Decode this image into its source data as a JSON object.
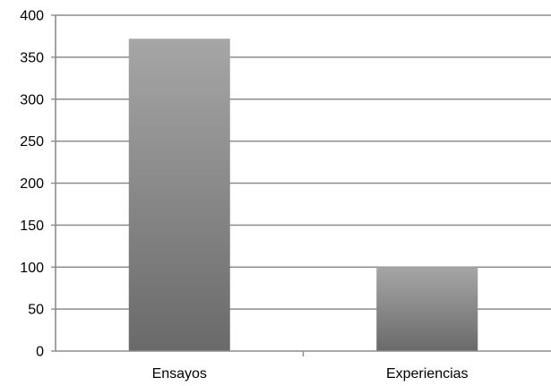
{
  "chart_data": {
    "type": "bar",
    "title": "",
    "xlabel": "",
    "ylabel": "",
    "categories": [
      "Ensayos",
      "Experiencias"
    ],
    "values": [
      372,
      100
    ],
    "ylim": [
      0,
      400
    ],
    "yticks": [
      0,
      50,
      100,
      150,
      200,
      250,
      300,
      350,
      400
    ],
    "grid": true,
    "legend": "none",
    "colors": {
      "bar_top": "#a6a6a6",
      "bar_bottom": "#6a6a6a",
      "gridline": "#8c8c8c",
      "axis": "#8c8c8c"
    }
  }
}
